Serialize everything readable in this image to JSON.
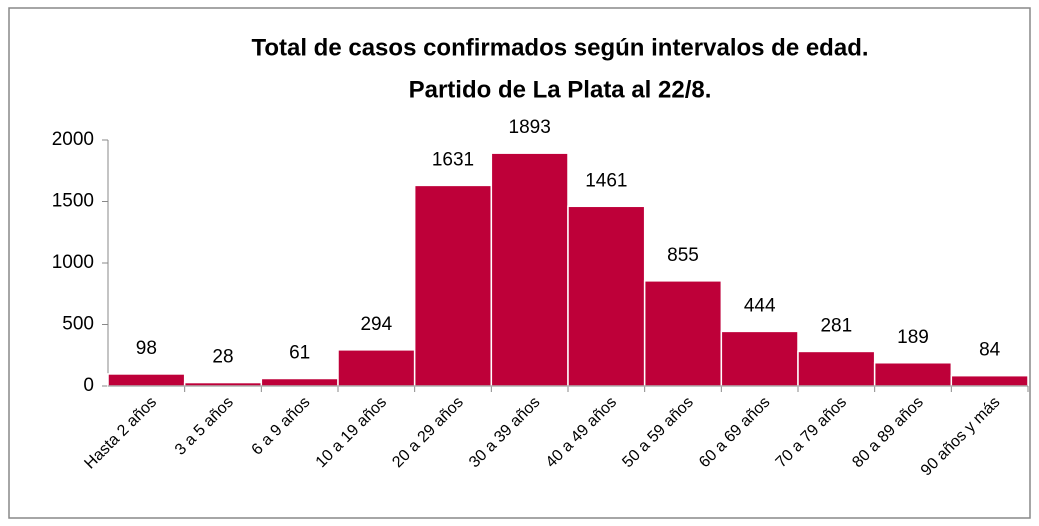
{
  "chart_data": {
    "type": "bar",
    "title": [
      "Total de casos confirmados según intervalos de edad.",
      "Partido de La Plata al 22/8."
    ],
    "categories": [
      "Hasta 2 años",
      "3 a 5 años",
      "6 a 9 años",
      "10 a 19 años",
      "20 a 29 años",
      "30 a 39 años",
      "40 a 49 años",
      "50 a 59 años",
      "60 a 69 años",
      "70 a 79 años",
      "80 a 89 años",
      "90 años y más"
    ],
    "values": [
      98,
      28,
      61,
      294,
      1631,
      1893,
      1461,
      855,
      444,
      281,
      189,
      84
    ],
    "color": "#be0039",
    "ylim": [
      0,
      2000
    ],
    "yticks": [
      0,
      500,
      1000,
      1500,
      2000
    ],
    "grid": false
  }
}
